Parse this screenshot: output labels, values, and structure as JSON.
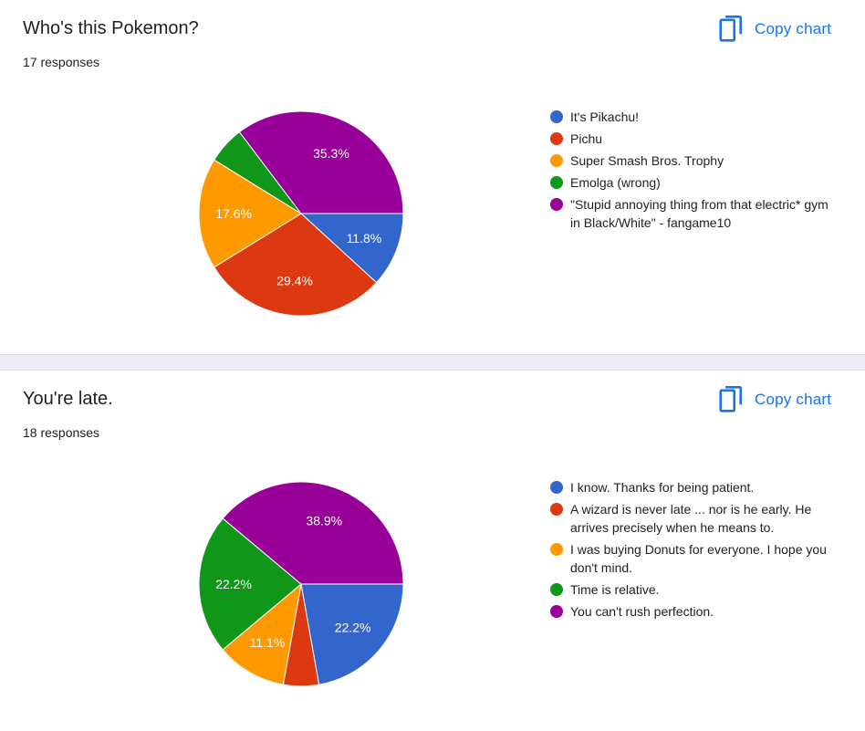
{
  "colors": [
    "#3366cc",
    "#dc3912",
    "#ff9900",
    "#109618",
    "#990099"
  ],
  "copy_label": "Copy chart",
  "copy_icon": "copy-icon",
  "cards": [
    {
      "title": "Who's this Pokemon?",
      "responses": "17 responses",
      "legend": [
        "It's Pikachu!",
        "Pichu",
        "Super Smash Bros. Trophy",
        "Emolga (wrong)",
        "\"Stupid annoying thing from that electric* gym in Black/White\" - fangame10"
      ]
    },
    {
      "title": "You're late.",
      "responses": "18 responses",
      "legend": [
        "I know. Thanks for being patient.",
        "A wizard is never late ... nor is he early. He arrives precisely when he means to.",
        "I was buying Donuts for everyone. I hope you don't mind.",
        "Time is relative.",
        "You can't rush perfection."
      ]
    }
  ],
  "chart_data": [
    {
      "type": "pie",
      "categories": [
        "It's Pikachu!",
        "Pichu",
        "Super Smash Bros. Trophy",
        "Emolga (wrong)",
        "\"Stupid annoying thing from that electric* gym in Black/White\" - fangame10"
      ],
      "values": [
        11.8,
        29.4,
        17.6,
        5.9,
        35.3
      ],
      "labels": [
        "11.8%",
        "29.4%",
        "17.6%",
        "",
        "35.3%"
      ],
      "title": "Who's this Pokemon?"
    },
    {
      "type": "pie",
      "categories": [
        "I know. Thanks for being patient.",
        "A wizard is never late ... nor is he early. He arrives precisely when he means to.",
        "I was buying Donuts for everyone. I hope you don't mind.",
        "Time is relative.",
        "You can't rush perfection."
      ],
      "values": [
        22.2,
        5.6,
        11.1,
        22.2,
        38.9
      ],
      "labels": [
        "22.2%",
        "",
        "11.1%",
        "22.2%",
        "38.9%"
      ],
      "title": "You're late."
    }
  ]
}
